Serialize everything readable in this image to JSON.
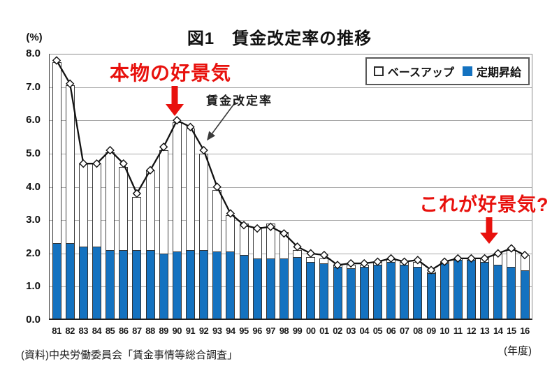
{
  "header": {
    "title": "図1　賃金改定率の推移",
    "y_unit": "(%)"
  },
  "legend": {
    "baseup": "ベースアップ",
    "teiki": "定期昇給"
  },
  "annotations": {
    "real_boom": "本物の好景気",
    "line_label": "賃金改定率",
    "this_boom": "これが好景気?"
  },
  "footer": {
    "source": "(資料)中央労働委員会「賃金事情等総合調査」",
    "x_unit": "(年度)"
  },
  "colors": {
    "bar_blue": "#1472c0",
    "line_black": "#111111",
    "annotation_red": "#e8110d",
    "grid_gray": "#a9a9a9"
  },
  "chart_data": {
    "type": "bar",
    "subtype": "stacked-bars-with-line-overlay",
    "title": "図1 賃金改定率の推移",
    "categories": [
      "81",
      "82",
      "83",
      "84",
      "85",
      "86",
      "87",
      "88",
      "89",
      "90",
      "91",
      "92",
      "93",
      "94",
      "95",
      "96",
      "97",
      "98",
      "99",
      "00",
      "01",
      "02",
      "03",
      "04",
      "05",
      "06",
      "07",
      "08",
      "09",
      "10",
      "11",
      "12",
      "13",
      "14",
      "15",
      "16"
    ],
    "series": [
      {
        "name": "定期昇給",
        "type": "bar",
        "stack": true,
        "color": "#1472c0",
        "values": [
          2.3,
          2.3,
          2.2,
          2.2,
          2.1,
          2.1,
          2.1,
          2.1,
          2.0,
          2.05,
          2.1,
          2.1,
          2.05,
          2.05,
          1.95,
          1.85,
          1.85,
          1.85,
          1.9,
          1.75,
          1.7,
          1.6,
          1.55,
          1.6,
          1.65,
          1.75,
          1.65,
          1.6,
          1.4,
          1.7,
          1.8,
          1.8,
          1.75,
          1.65,
          1.6,
          1.5
        ]
      },
      {
        "name": "ベースアップ",
        "type": "bar",
        "stack": true,
        "color": "#ffffff",
        "values": [
          5.45,
          4.75,
          2.5,
          2.5,
          2.95,
          2.5,
          1.6,
          2.4,
          3.1,
          3.9,
          3.65,
          2.9,
          1.85,
          1.1,
          0.95,
          0.95,
          1.05,
          0.8,
          0.2,
          0.15,
          0.15,
          0.05,
          0.1,
          0.05,
          0.1,
          0.1,
          0.1,
          0.15,
          0.05,
          0.05,
          0.05,
          0.05,
          0.1,
          0.35,
          0.5,
          0.45
        ]
      },
      {
        "name": "賃金改定率",
        "type": "line",
        "color": "#111111",
        "marker": "diamond",
        "values": [
          7.8,
          7.1,
          4.7,
          4.7,
          5.1,
          4.7,
          3.8,
          4.5,
          5.2,
          6.0,
          5.8,
          5.1,
          4.0,
          3.2,
          2.85,
          2.75,
          2.8,
          2.6,
          2.2,
          2.0,
          1.95,
          1.65,
          1.7,
          1.7,
          1.75,
          1.85,
          1.75,
          1.8,
          1.5,
          1.75,
          1.85,
          1.85,
          1.85,
          2.0,
          2.15,
          1.95
        ]
      }
    ],
    "ylim": [
      0,
      8
    ],
    "ytick_step": 1.0,
    "ytick_labels": [
      "8.0",
      "7.0",
      "6.0",
      "5.0",
      "4.0",
      "3.0",
      "2.0",
      "1.0",
      "0.0"
    ],
    "grid": "horizontal",
    "legend_position": "top-right-inside"
  }
}
